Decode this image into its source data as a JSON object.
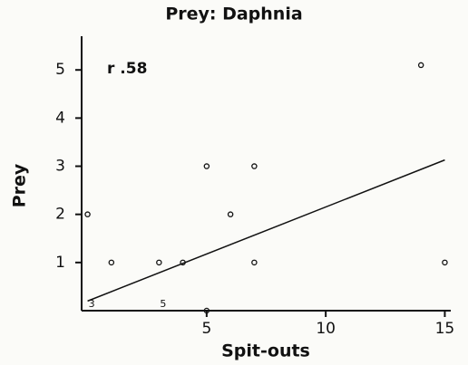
{
  "chart_data": {
    "type": "scatter",
    "title": "Prey: Daphnia",
    "xlabel": "Spit-outs",
    "ylabel": "Prey",
    "annotation": "r .58",
    "x": [
      0,
      1,
      3,
      4,
      5,
      5,
      6,
      7,
      7,
      14,
      15
    ],
    "values": [
      2,
      1,
      1,
      1,
      3,
      0,
      2,
      3,
      1,
      5.1,
      1
    ],
    "count_labels": [
      {
        "text": "3",
        "x": 0,
        "y": 0
      },
      {
        "text": "5",
        "x": 3,
        "y": 0
      }
    ],
    "fit_line": {
      "x": [
        0,
        15
      ],
      "y": [
        0.2,
        3.13
      ]
    },
    "color": "#111111",
    "xlim": [
      -0.25,
      15.25
    ],
    "ylim": [
      0,
      5.7
    ],
    "xticks": [
      5,
      10,
      15
    ],
    "yticks": [
      1,
      2,
      3,
      4,
      5
    ]
  }
}
